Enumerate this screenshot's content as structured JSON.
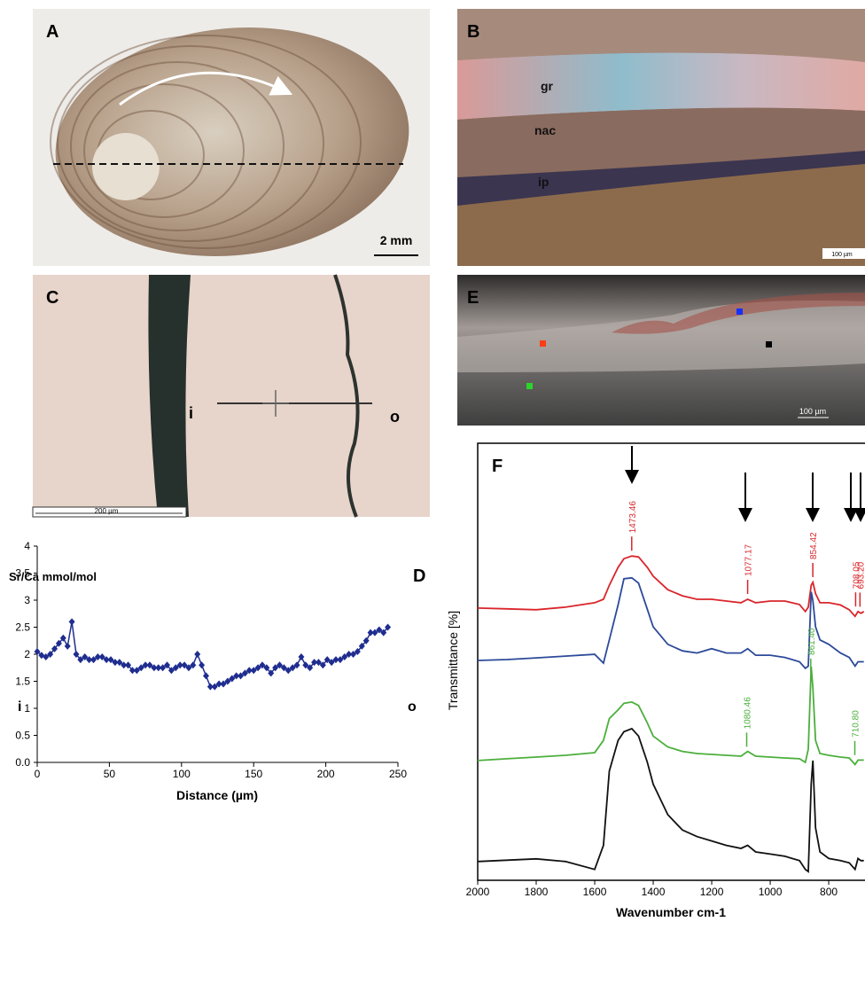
{
  "panels": {
    "A": {
      "label": "A",
      "scale_bar": "2 mm"
    },
    "B": {
      "label": "B",
      "layers": [
        "gr",
        "nac",
        "ip"
      ],
      "scale_bar": "100 µm"
    },
    "C": {
      "label": "C",
      "inner": "i",
      "outer": "o",
      "scale_bar": "200 µm"
    },
    "E": {
      "label": "E",
      "scale_bar": "100 µm"
    }
  },
  "chart_data": [
    {
      "type": "line",
      "label": "D",
      "title": "Sr/Ca mmol/mol",
      "x_label": "Distance (µm)",
      "annotations": [
        "i",
        "o"
      ],
      "x": [
        0,
        3,
        6,
        9,
        12,
        15,
        18,
        21,
        24,
        27,
        30,
        33,
        36,
        39,
        42,
        45,
        48,
        51,
        54,
        57,
        60,
        63,
        66,
        69,
        72,
        75,
        78,
        81,
        84,
        87,
        90,
        93,
        96,
        99,
        102,
        105,
        108,
        111,
        114,
        117,
        120,
        123,
        126,
        129,
        132,
        135,
        138,
        141,
        144,
        147,
        150,
        153,
        156,
        159,
        162,
        165,
        168,
        171,
        174,
        177,
        180,
        183,
        186,
        189,
        192,
        195,
        198,
        201,
        204,
        207,
        210,
        213,
        216,
        219,
        222,
        225,
        228,
        231,
        234,
        237,
        240,
        243
      ],
      "series": [
        {
          "color": "#1f2d8f",
          "marker": "diamond",
          "error": 0.05,
          "values": [
            2.05,
            1.98,
            1.95,
            2.0,
            2.1,
            2.2,
            2.3,
            2.15,
            2.6,
            2.0,
            1.9,
            1.95,
            1.9,
            1.9,
            1.95,
            1.95,
            1.9,
            1.9,
            1.85,
            1.85,
            1.8,
            1.8,
            1.7,
            1.7,
            1.75,
            1.8,
            1.8,
            1.75,
            1.75,
            1.75,
            1.8,
            1.7,
            1.75,
            1.8,
            1.8,
            1.75,
            1.8,
            2.0,
            1.8,
            1.6,
            1.4,
            1.4,
            1.45,
            1.45,
            1.5,
            1.55,
            1.6,
            1.6,
            1.65,
            1.7,
            1.7,
            1.75,
            1.8,
            1.75,
            1.65,
            1.75,
            1.8,
            1.75,
            1.7,
            1.75,
            1.8,
            1.95,
            1.8,
            1.75,
            1.85,
            1.85,
            1.8,
            1.9,
            1.85,
            1.9,
            1.9,
            1.95,
            2.0,
            2.0,
            2.05,
            2.15,
            2.25,
            2.4,
            2.4,
            2.45,
            2.4,
            2.5
          ]
        }
      ],
      "xlim": [
        0,
        250
      ],
      "xticks": [
        0,
        50,
        100,
        150,
        200,
        250
      ],
      "ylim": [
        0,
        4
      ],
      "yticks": [
        {
          "value": 0,
          "label": "0.0"
        },
        0.5,
        1,
        1.5,
        2,
        2.5,
        3,
        3.5,
        4
      ]
    },
    {
      "type": "line",
      "label": "F",
      "x_label": "Wavenumber cm-1",
      "y_label": "Transmittance [%]",
      "frame": true,
      "x": [
        2000,
        1900,
        1800,
        1700,
        1600,
        1570,
        1550,
        1520,
        1500,
        1473,
        1450,
        1420,
        1400,
        1350,
        1300,
        1250,
        1200,
        1150,
        1100,
        1077,
        1050,
        1000,
        950,
        900,
        880,
        870,
        860,
        854,
        845,
        830,
        800,
        760,
        730,
        710,
        700,
        690,
        680
      ],
      "series": [
        {
          "color": "#d9262b",
          "values": [
            62.3,
            62.1,
            61.9,
            62.5,
            63.5,
            64.3,
            67.5,
            71.6,
            73.6,
            74.2,
            74.0,
            71.6,
            69.6,
            66.5,
            65.1,
            64.3,
            64.3,
            63.9,
            63.5,
            64.3,
            63.5,
            63.9,
            63.9,
            63.1,
            61.5,
            62.5,
            67.5,
            68.2,
            65.6,
            63.5,
            63.5,
            63.0,
            61.9,
            60.4,
            61.5,
            61.1,
            61.5
          ],
          "peaks": [
            1473.46,
            1077.17,
            854.42,
            708.05,
            {
              "value": 693.2,
              "label": "693.20"
            }
          ]
        },
        {
          "color": "#2c4a9a",
          "values": [
            50.3,
            50.5,
            50.9,
            51.3,
            51.7,
            49.7,
            55,
            63,
            69,
            69.2,
            68,
            62,
            58,
            54,
            52.5,
            52,
            53,
            52,
            52,
            53,
            51.5,
            51.5,
            51,
            50,
            48.5,
            49,
            66,
            64,
            58,
            55,
            54,
            52,
            51,
            49,
            50,
            50,
            50
          ]
        },
        {
          "color": "#4caf3c",
          "values": [
            27.4,
            27.8,
            28.2,
            28.6,
            29.2,
            32,
            37,
            39,
            40.5,
            40.8,
            40,
            36,
            33,
            30.5,
            29.5,
            29,
            28.8,
            28.6,
            28.4,
            29.5,
            28.4,
            28.2,
            28,
            27.8,
            27,
            30,
            48.9,
            44,
            32,
            29,
            28.6,
            28.2,
            28,
            26.5,
            27.5,
            27.5,
            27.5
          ],
          "peaks": [
            1080.46,
            {
              "value": 861.4,
              "label": "861.40"
            },
            {
              "value": 710.8,
              "label": "710.80"
            }
          ]
        },
        {
          "color": "#111111",
          "values": [
            4.3,
            4.6,
            4.9,
            4.3,
            2.5,
            8,
            25,
            32,
            34,
            34.7,
            33,
            27,
            22,
            15,
            11.5,
            10,
            9,
            8,
            7.3,
            8,
            6.5,
            6,
            5.5,
            4.5,
            2.5,
            2,
            22,
            27.4,
            12,
            6.5,
            5,
            4.5,
            4,
            2.5,
            5,
            4.5,
            4.5
          ]
        }
      ],
      "xlim": [
        2000,
        676
      ],
      "xticks": [
        2000,
        1800,
        1600,
        1400,
        1200,
        1000,
        800
      ],
      "ylim": [
        0,
        100
      ]
    }
  ]
}
